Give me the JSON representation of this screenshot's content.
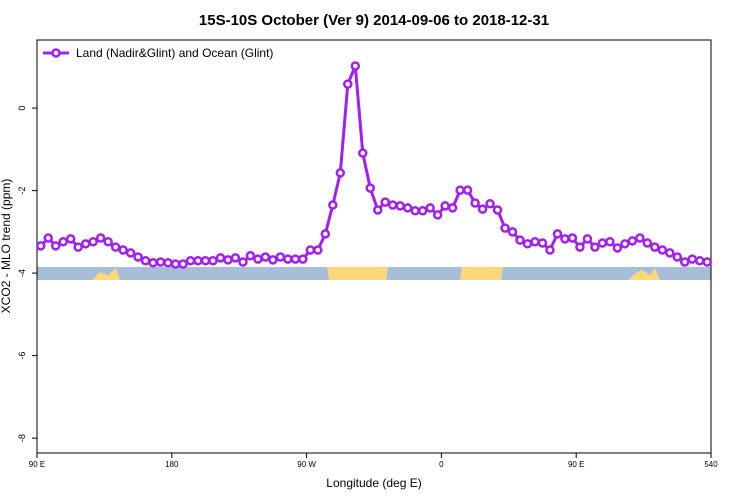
{
  "chart_data": {
    "type": "line",
    "title": "15S-10S October (Ver 9)   2014-09-06 to 2018-12-31",
    "x_label": "Longitude (deg E)",
    "y_label": "XCO2 - MLO trend (ppm)",
    "x": [
      92.5,
      97.5,
      102.5,
      107.5,
      112.5,
      117.5,
      122.5,
      127.5,
      132.5,
      137.5,
      142.5,
      147.5,
      152.5,
      157.5,
      162.5,
      167.5,
      172.5,
      177.5,
      182.5,
      187.5,
      192.5,
      197.5,
      202.5,
      207.5,
      212.5,
      217.5,
      222.5,
      227.5,
      232.5,
      237.5,
      242.5,
      247.5,
      252.5,
      257.5,
      262.5,
      267.5,
      272.5,
      277.5,
      282.5,
      287.5,
      292.5,
      297.5,
      302.5,
      307.5,
      312.5,
      317.5,
      322.5,
      327.5,
      332.5,
      337.5,
      342.5,
      347.5,
      352.5,
      357.5,
      362.5,
      367.5,
      372.5,
      377.5,
      382.5,
      387.5,
      392.5,
      397.5,
      402.5,
      407.5,
      412.5,
      417.5,
      422.5,
      427.5,
      432.5,
      437.5,
      442.5,
      447.5,
      452.5,
      457.5,
      462.5,
      467.5,
      472.5,
      477.5,
      482.5,
      487.5,
      492.5,
      497.5,
      502.5,
      507.5,
      512.5,
      517.5,
      522.5,
      527.5,
      532.5,
      537.5
    ],
    "series": [
      {
        "name": "Land (Nadir&Glint) and Ocean (Glint)",
        "color": "#a020f0",
        "values": [
          -3.34,
          -3.15,
          -3.34,
          -3.24,
          -3.17,
          -3.37,
          -3.29,
          -3.24,
          -3.15,
          -3.24,
          -3.37,
          -3.44,
          -3.51,
          -3.61,
          -3.7,
          -3.75,
          -3.73,
          -3.75,
          -3.78,
          -3.78,
          -3.7,
          -3.7,
          -3.7,
          -3.7,
          -3.63,
          -3.68,
          -3.63,
          -3.73,
          -3.58,
          -3.66,
          -3.61,
          -3.68,
          -3.61,
          -3.66,
          -3.66,
          -3.66,
          -3.44,
          -3.44,
          -3.05,
          -2.35,
          -1.57,
          0.58,
          1.02,
          -1.09,
          -1.94,
          -2.47,
          -2.28,
          -2.35,
          -2.37,
          -2.42,
          -2.49,
          -2.49,
          -2.42,
          -2.59,
          -2.37,
          -2.42,
          -1.99,
          -1.99,
          -2.3,
          -2.45,
          -2.32,
          -2.47,
          -2.91,
          -3.0,
          -3.2,
          -3.29,
          -3.24,
          -3.27,
          -3.44,
          -3.05,
          -3.17,
          -3.15,
          -3.37,
          -3.17,
          -3.37,
          -3.27,
          -3.24,
          -3.39,
          -3.29,
          -3.22,
          -3.15,
          -3.27,
          -3.37,
          -3.44,
          -3.51,
          -3.61,
          -3.73,
          -3.66,
          -3.7,
          -3.73
        ]
      }
    ],
    "xlim": [
      90,
      540
    ],
    "ylim": [
      -8.36,
      1.65
    ],
    "xticks": [
      {
        "value": 90,
        "label": "90 E"
      },
      180,
      {
        "value": 270,
        "label": "90 W"
      },
      {
        "value": 360,
        "label": "0"
      },
      {
        "value": 450,
        "label": "90 E"
      },
      540
    ],
    "yticks": [
      -8,
      -6,
      -4,
      -2,
      0
    ],
    "legend": "top-left"
  }
}
